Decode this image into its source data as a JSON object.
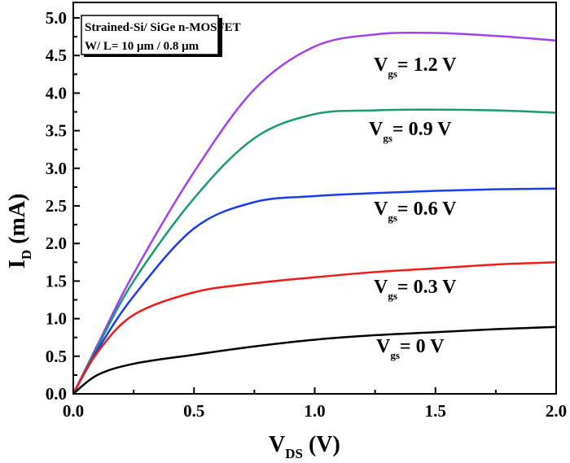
{
  "chart_data": {
    "type": "line",
    "xlabel": "V",
    "xlabel_sub": "DS",
    "xlabel_unit": " (V)",
    "ylabel": "I",
    "ylabel_sub": "D",
    "ylabel_unit": " (mA)",
    "xlim": [
      0,
      2.0
    ],
    "ylim": [
      0,
      5.0
    ],
    "xticks": [
      "0.0",
      "0.5",
      "1.0",
      "1.5",
      "2.0"
    ],
    "yticks": [
      "0.0",
      "0.5",
      "1.0",
      "1.5",
      "2.0",
      "2.5",
      "3.0",
      "3.5",
      "4.0",
      "4.5",
      "5.0"
    ],
    "grid": false,
    "annotation_box": [
      "Strained-Si/ SiGe n-MOSFET",
      "W/ L= 10 μm / 0.8 μm"
    ],
    "x": [
      0,
      0.1,
      0.25,
      0.5,
      0.75,
      1.0,
      1.25,
      1.5,
      1.75,
      2.0
    ],
    "series": [
      {
        "name": "= 1.2 V",
        "color": "#a040f0",
        "values": [
          0,
          0.65,
          1.6,
          2.95,
          4.05,
          4.62,
          4.78,
          4.8,
          4.76,
          4.7
        ]
      },
      {
        "name": "= 0.9 V",
        "color": "#1a9a70",
        "values": [
          0,
          0.62,
          1.5,
          2.6,
          3.4,
          3.72,
          3.77,
          3.78,
          3.77,
          3.74
        ]
      },
      {
        "name": "= 0.6 V",
        "color": "#1a3cf0",
        "values": [
          0,
          0.58,
          1.3,
          2.2,
          2.55,
          2.63,
          2.67,
          2.7,
          2.72,
          2.73
        ]
      },
      {
        "name": "= 0.3 V",
        "color": "#f01a1a",
        "values": [
          0,
          0.55,
          1.05,
          1.35,
          1.47,
          1.55,
          1.62,
          1.67,
          1.72,
          1.75
        ]
      },
      {
        "name": "= 0 V",
        "color": "#000000",
        "values": [
          0,
          0.25,
          0.4,
          0.52,
          0.63,
          0.72,
          0.78,
          0.82,
          0.86,
          0.89
        ]
      }
    ],
    "label_prefix": "V",
    "label_sub": "gs"
  }
}
